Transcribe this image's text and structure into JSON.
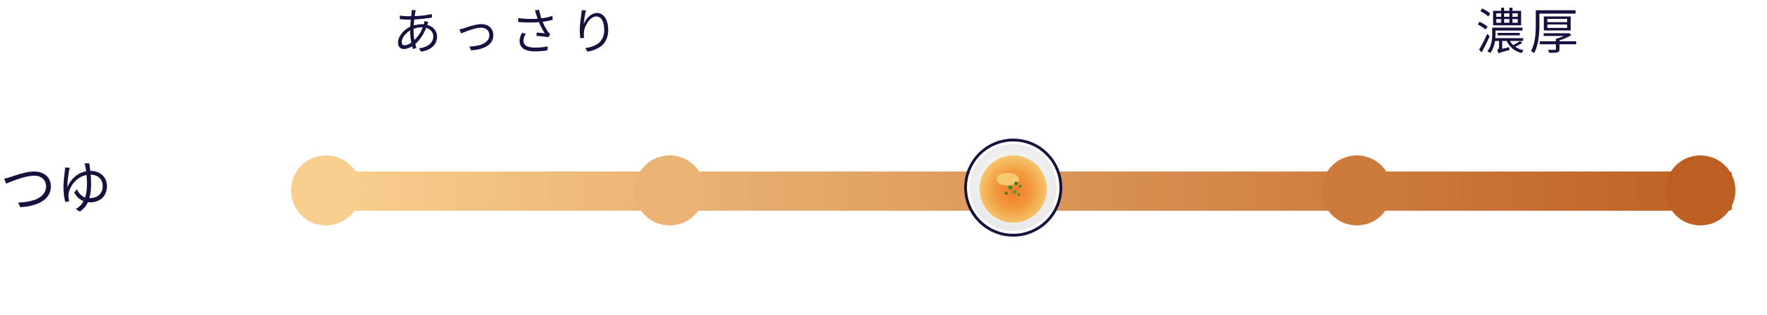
{
  "scale": {
    "left_label": "あっさり",
    "right_label": "濃厚",
    "row_label": "つゆ",
    "levels": 5,
    "selected_level": 3,
    "colors": {
      "gradient_start": "#f9cf8f",
      "gradient_end": "#bd5f22",
      "ring": "#15123f"
    },
    "selected_icon": "soup-bowl-icon"
  }
}
